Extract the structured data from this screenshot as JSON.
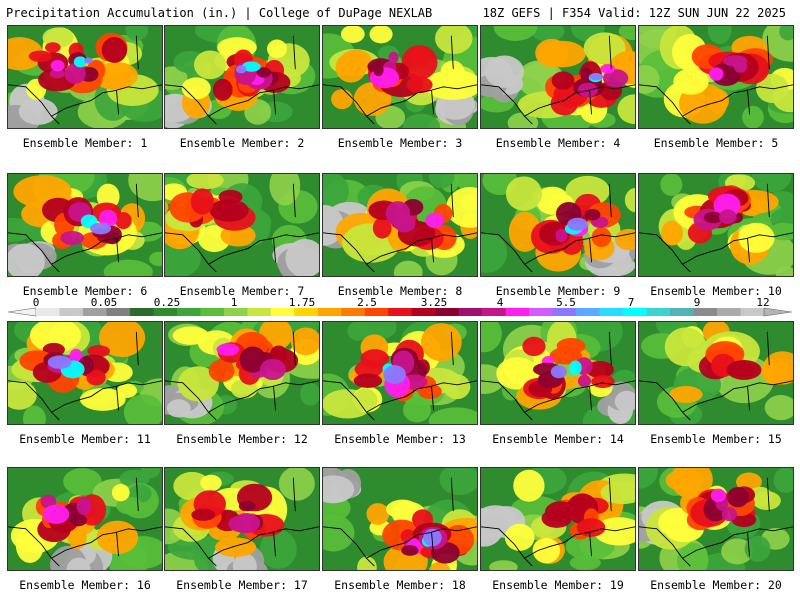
{
  "header": {
    "left": "Precipitation Accumulation (in.) | College of DuPage NEXLAB",
    "right": "18Z GEFS | F354 Valid: 12Z SUN JUN 22 2025"
  },
  "colorbar": {
    "ticks": [
      "0",
      "0.05",
      "0.25",
      "1",
      "1.75",
      "2.5",
      "3.25",
      "4",
      "5.5",
      "7",
      "9",
      "12"
    ],
    "colors": [
      "#e8e8e8",
      "#c8c8c8",
      "#a0a0a0",
      "#808080",
      "#2d6b2d",
      "#2e8b2e",
      "#3ca53c",
      "#59bf3a",
      "#8fd14a",
      "#c8e63c",
      "#ffff3c",
      "#ffd400",
      "#ffa500",
      "#ff7a00",
      "#ff4500",
      "#e8101a",
      "#b4001e",
      "#8c0030",
      "#a0106e",
      "#c8148c",
      "#ff1ef0",
      "#d25aff",
      "#8c78ff",
      "#5aaaff",
      "#28dcff",
      "#00ffff",
      "#3cd2d2",
      "#50b4b4",
      "#8c8c8c",
      "#aaaaaa",
      "#c8c8c8"
    ]
  },
  "members": [
    {
      "label": "Ensemble Member: 1"
    },
    {
      "label": "Ensemble Member: 2"
    },
    {
      "label": "Ensemble Member: 3"
    },
    {
      "label": "Ensemble Member: 4"
    },
    {
      "label": "Ensemble Member: 5"
    },
    {
      "label": "Ensemble Member: 6"
    },
    {
      "label": "Ensemble Member: 7"
    },
    {
      "label": "Ensemble Member: 8"
    },
    {
      "label": "Ensemble Member: 9"
    },
    {
      "label": "Ensemble Member: 10"
    },
    {
      "label": "Ensemble Member: 11"
    },
    {
      "label": "Ensemble Member: 12"
    },
    {
      "label": "Ensemble Member: 13"
    },
    {
      "label": "Ensemble Member: 14"
    },
    {
      "label": "Ensemble Member: 15"
    },
    {
      "label": "Ensemble Member: 16"
    },
    {
      "label": "Ensemble Member: 17"
    },
    {
      "label": "Ensemble Member: 18"
    },
    {
      "label": "Ensemble Member: 19"
    },
    {
      "label": "Ensemble Member: 20"
    }
  ]
}
